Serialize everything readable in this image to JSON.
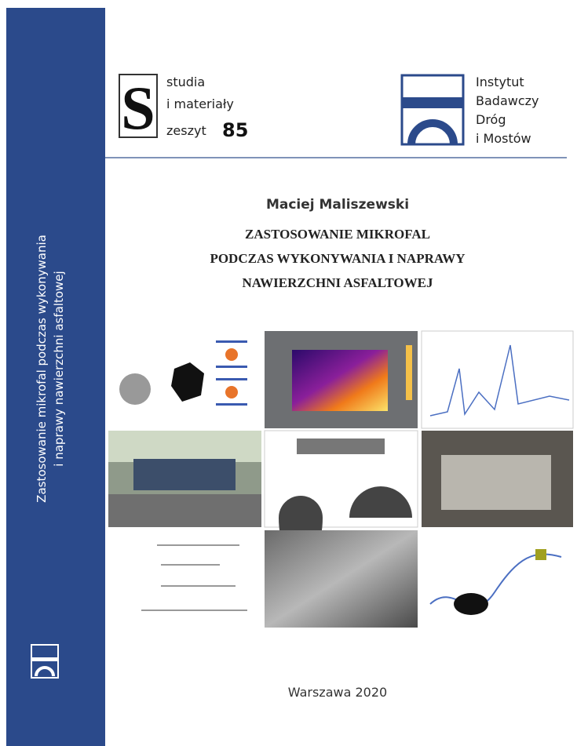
{
  "spine": {
    "line1": "Zastosowanie mikrofal podczas wykonywania",
    "line2": "i naprawy nawierzchni asfaltowej"
  },
  "series_logo": {
    "letter": "S",
    "line1": "studia",
    "line2": "i materiały",
    "line3": "zeszyt",
    "number": 85
  },
  "institute": {
    "lines": [
      "Instytut",
      "Badawczy",
      "Dróg",
      "i Mostów"
    ]
  },
  "author": "Maciej Maliszewski",
  "title": [
    "ZASTOSOWANIE MIKROFAL",
    "PODCZAS WYKONYWANIA I NAPRAWY",
    "NAWIERZCHNI ASFALTOWEJ"
  ],
  "footer": "Warszawa 2020"
}
